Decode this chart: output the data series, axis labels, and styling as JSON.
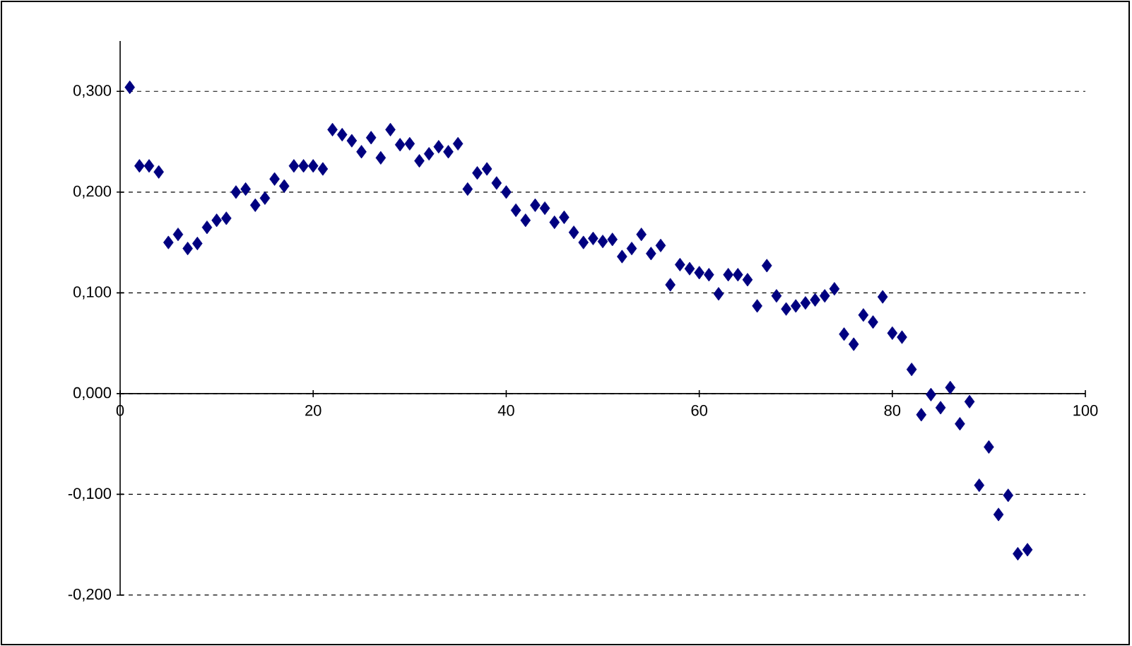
{
  "chart_data": {
    "type": "scatter",
    "marker": "diamond",
    "grid": "y",
    "xlim": [
      0,
      100
    ],
    "ylim": [
      -0.2,
      0.35
    ],
    "xticks": [
      0,
      20,
      40,
      60,
      80,
      100
    ],
    "yticks": [
      {
        "value": -0.2,
        "label": "-0,200"
      },
      {
        "value": -0.1,
        "label": "-0,100"
      },
      {
        "value": 0,
        "label": "0,000"
      },
      {
        "value": 0.1,
        "label": "0,100"
      },
      {
        "value": 0.2,
        "label": "0,200"
      },
      {
        "value": 0.3,
        "label": "0,300"
      }
    ],
    "x": [
      1,
      2,
      3,
      4,
      5,
      6,
      7,
      8,
      9,
      10,
      11,
      12,
      13,
      14,
      15,
      16,
      17,
      18,
      19,
      20,
      21,
      22,
      23,
      24,
      25,
      26,
      27,
      28,
      29,
      30,
      31,
      32,
      33,
      34,
      35,
      36,
      37,
      38,
      39,
      40,
      41,
      42,
      43,
      44,
      45,
      46,
      47,
      48,
      49,
      50,
      51,
      52,
      53,
      54,
      55,
      56,
      57,
      58,
      59,
      60,
      61,
      62,
      63,
      64,
      65,
      66,
      67,
      68,
      69,
      70,
      71,
      72,
      73,
      74,
      75,
      76,
      77,
      78,
      79,
      80,
      81,
      82,
      83,
      84,
      85,
      86,
      87,
      88,
      89,
      90,
      91,
      92,
      93,
      94
    ],
    "series": [
      {
        "color": "#000080",
        "values": [
          0.304,
          0.226,
          0.226,
          0.22,
          0.15,
          0.158,
          0.144,
          0.149,
          0.165,
          0.172,
          0.174,
          0.2,
          0.203,
          0.187,
          0.194,
          0.213,
          0.206,
          0.226,
          0.226,
          0.226,
          0.223,
          0.262,
          0.257,
          0.251,
          0.24,
          0.254,
          0.234,
          0.262,
          0.247,
          0.248,
          0.231,
          0.238,
          0.245,
          0.24,
          0.248,
          0.203,
          0.219,
          0.223,
          0.209,
          0.2,
          0.182,
          0.172,
          0.187,
          0.184,
          0.17,
          0.175,
          0.16,
          0.15,
          0.154,
          0.151,
          0.153,
          0.136,
          0.144,
          0.158,
          0.139,
          0.147,
          0.108,
          0.128,
          0.124,
          0.12,
          0.118,
          0.099,
          0.118,
          0.118,
          0.113,
          0.087,
          0.127,
          0.097,
          0.084,
          0.087,
          0.09,
          0.093,
          0.097,
          0.104,
          0.059,
          0.049,
          0.078,
          0.071,
          0.096,
          0.06,
          0.056,
          0.024,
          -0.021,
          -0.001,
          -0.014,
          0.006,
          -0.03,
          -0.008,
          -0.091,
          -0.053,
          -0.12,
          -0.101,
          -0.159,
          -0.155
        ]
      }
    ]
  }
}
